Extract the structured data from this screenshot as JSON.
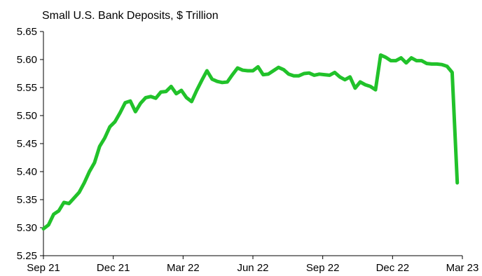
{
  "chart_data": {
    "type": "line",
    "title": "Small U.S. Bank Deposits, $ Trillion",
    "xlabel": "",
    "ylabel": "",
    "x_ticks": [
      "Sep 21",
      "Dec 21",
      "Mar 22",
      "Jun 22",
      "Sep 22",
      "Dec 22",
      "Mar 23"
    ],
    "y_ticks": [
      "5.25",
      "5.30",
      "5.35",
      "5.40",
      "5.45",
      "5.50",
      "5.55",
      "5.60",
      "5.65"
    ],
    "ylim": [
      5.25,
      5.65
    ],
    "xlim": [
      0,
      82
    ],
    "grid": false,
    "legend": "none",
    "line_color": "#21c22a",
    "series": [
      {
        "name": "",
        "x": [
          0,
          1,
          2,
          3,
          4,
          5,
          6,
          7,
          8,
          9,
          10,
          11,
          12,
          13,
          14,
          15,
          16,
          17,
          18,
          19,
          20,
          21,
          22,
          23,
          24,
          25,
          26,
          27,
          28,
          29,
          30,
          31,
          32,
          33,
          34,
          35,
          36,
          37,
          38,
          39,
          40,
          41,
          42,
          43,
          44,
          45,
          46,
          47,
          48,
          49,
          50,
          51,
          52,
          53,
          54,
          55,
          56,
          57,
          58,
          59,
          60,
          61,
          62,
          63,
          64,
          65,
          66,
          67,
          68,
          69,
          70,
          71,
          72,
          73,
          74,
          75,
          76,
          77,
          78,
          79,
          80,
          81
        ],
        "values": [
          5.298,
          5.305,
          5.324,
          5.33,
          5.345,
          5.343,
          5.353,
          5.363,
          5.38,
          5.4,
          5.416,
          5.445,
          5.46,
          5.48,
          5.489,
          5.505,
          5.523,
          5.526,
          5.507,
          5.522,
          5.532,
          5.534,
          5.531,
          5.542,
          5.543,
          5.552,
          5.539,
          5.545,
          5.532,
          5.525,
          5.545,
          5.563,
          5.58,
          5.565,
          5.561,
          5.559,
          5.56,
          5.573,
          5.585,
          5.581,
          5.58,
          5.58,
          5.587,
          5.573,
          5.574,
          5.58,
          5.586,
          5.582,
          5.574,
          5.571,
          5.571,
          5.575,
          5.576,
          5.572,
          5.574,
          5.573,
          5.572,
          5.577,
          5.569,
          5.564,
          5.569,
          5.549,
          5.56,
          5.555,
          5.552,
          5.546,
          5.608,
          5.604,
          5.598,
          5.598,
          5.603,
          5.594,
          5.603,
          5.598,
          5.598,
          5.593,
          5.592,
          5.592,
          5.591,
          5.588,
          5.577,
          5.38
        ]
      }
    ]
  }
}
